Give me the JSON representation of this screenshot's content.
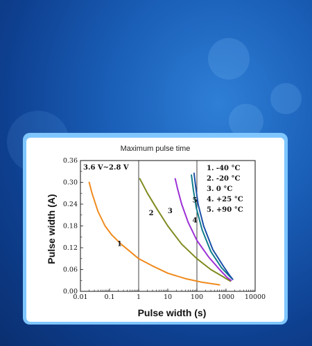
{
  "chart_data": {
    "type": "line",
    "title": "Maximum pulse time",
    "xlabel": "Pulse width (s)",
    "ylabel": "Pulse width (A)",
    "x_scale": "log",
    "xlim": [
      0.01,
      10000
    ],
    "ylim": [
      0,
      0.36
    ],
    "x_ticks": [
      "0.01",
      "0.1",
      "1",
      "10",
      "100",
      "1000",
      "10000"
    ],
    "y_ticks": [
      "0.00",
      "0.06",
      "0.12",
      "0.18",
      "0.24",
      "0.30",
      "0.36"
    ],
    "annotation": "3.6 V~2.8 V",
    "legend_position": "top-right",
    "legend": [
      "1. -40 °C",
      "2. -20 °C",
      "3. 0 °C",
      "4. +25 °C",
      "5. +90 °C"
    ],
    "grid": false,
    "series": [
      {
        "label": "1",
        "color": "#f08a1c",
        "points": [
          [
            0.02,
            0.3
          ],
          [
            0.025,
            0.27
          ],
          [
            0.04,
            0.22
          ],
          [
            0.07,
            0.18
          ],
          [
            0.12,
            0.155
          ],
          [
            0.25,
            0.13
          ],
          [
            0.5,
            0.11
          ],
          [
            1,
            0.09
          ],
          [
            3,
            0.07
          ],
          [
            10,
            0.05
          ],
          [
            40,
            0.035
          ],
          [
            150,
            0.025
          ],
          [
            600,
            0.018
          ]
        ]
      },
      {
        "label": "2",
        "color": "#7f8a1e",
        "points": [
          [
            1.1,
            0.31
          ],
          [
            2,
            0.27
          ],
          [
            4,
            0.23
          ],
          [
            10,
            0.18
          ],
          [
            30,
            0.13
          ],
          [
            100,
            0.09
          ],
          [
            300,
            0.06
          ],
          [
            800,
            0.04
          ],
          [
            1400,
            0.028
          ]
        ]
      },
      {
        "label": "3",
        "color": "#9b2fd6",
        "points": [
          [
            18,
            0.31
          ],
          [
            22,
            0.28
          ],
          [
            30,
            0.24
          ],
          [
            50,
            0.19
          ],
          [
            100,
            0.14
          ],
          [
            250,
            0.095
          ],
          [
            600,
            0.06
          ],
          [
            1100,
            0.038
          ],
          [
            1500,
            0.03
          ]
        ]
      },
      {
        "label": "4",
        "color": "#0f7d8a",
        "points": [
          [
            65,
            0.32
          ],
          [
            75,
            0.28
          ],
          [
            95,
            0.23
          ],
          [
            150,
            0.17
          ],
          [
            300,
            0.11
          ],
          [
            700,
            0.065
          ],
          [
            1200,
            0.045
          ],
          [
            1600,
            0.035
          ]
        ]
      },
      {
        "label": "5",
        "color": "#1a4fa8",
        "points": [
          [
            80,
            0.325
          ],
          [
            90,
            0.29
          ],
          [
            110,
            0.24
          ],
          [
            170,
            0.18
          ],
          [
            350,
            0.115
          ],
          [
            800,
            0.07
          ],
          [
            1300,
            0.045
          ],
          [
            1700,
            0.033
          ]
        ]
      }
    ]
  }
}
